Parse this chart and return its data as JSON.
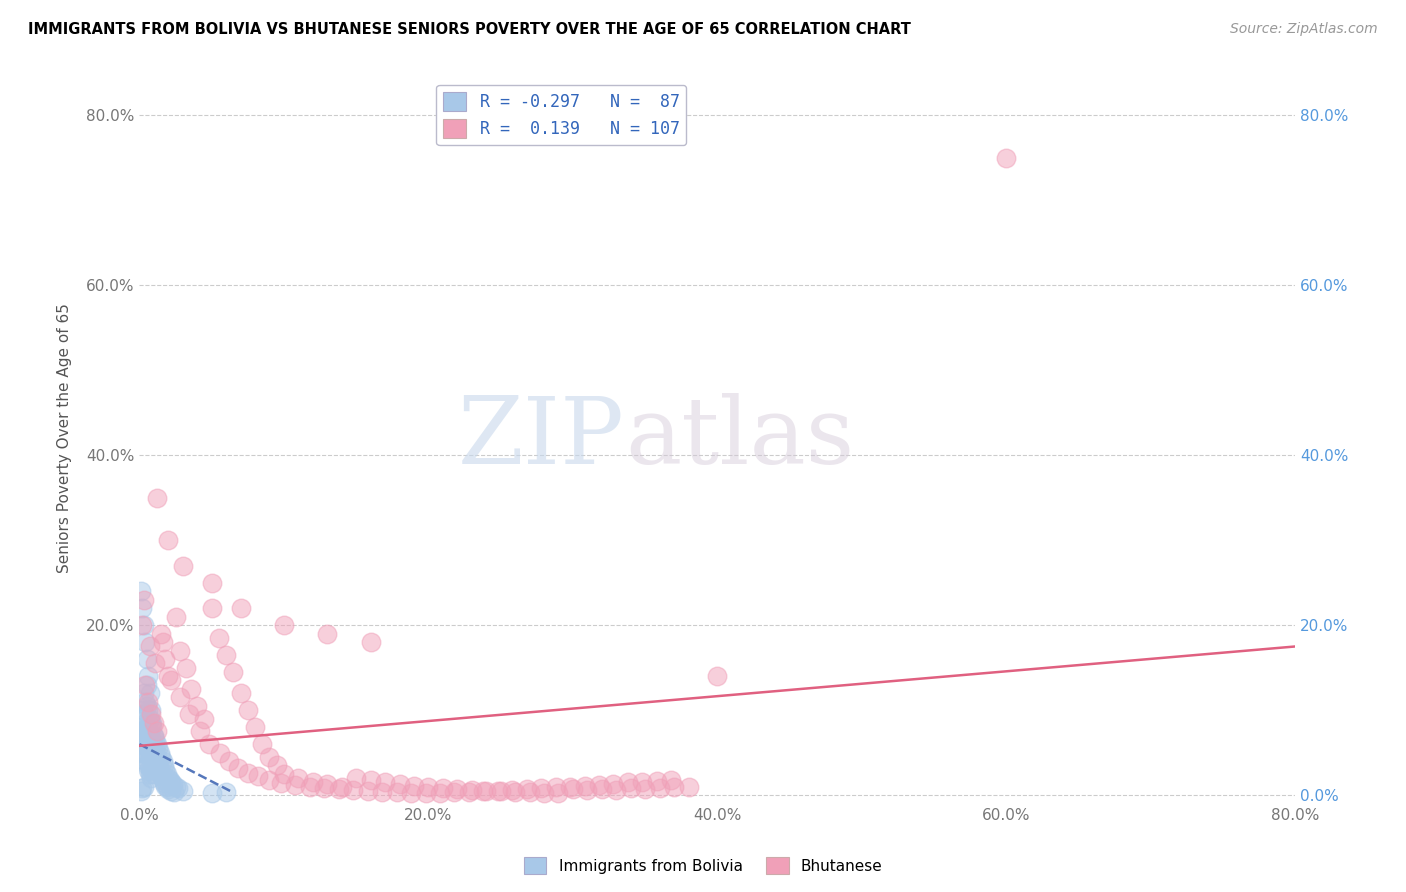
{
  "title": "IMMIGRANTS FROM BOLIVIA VS BHUTANESE SENIORS POVERTY OVER THE AGE OF 65 CORRELATION CHART",
  "source": "Source: ZipAtlas.com",
  "ylabel": "Seniors Poverty Over the Age of 65",
  "xlim": [
    0.0,
    0.8
  ],
  "ylim": [
    -0.01,
    0.85
  ],
  "yticks": [
    0.0,
    0.2,
    0.4,
    0.6,
    0.8
  ],
  "xticks": [
    0.0,
    0.2,
    0.4,
    0.6,
    0.8
  ],
  "xtick_labels": [
    "0.0%",
    "20.0%",
    "40.0%",
    "60.0%",
    "80.0%"
  ],
  "ytick_labels_left": [
    "",
    "20.0%",
    "40.0%",
    "60.0%",
    "80.0%"
  ],
  "ytick_labels_right": [
    "0.0%",
    "20.0%",
    "40.0%",
    "60.0%",
    "80.0%"
  ],
  "bolivia_color": "#a8c8e8",
  "bhutan_color": "#f0a0b8",
  "bolivia_R": -0.297,
  "bolivia_N": 87,
  "bhutan_R": 0.139,
  "bhutan_N": 107,
  "bolivia_line_color": "#5577bb",
  "bhutan_line_color": "#e06080",
  "watermark_zip": "ZIP",
  "watermark_atlas": "atlas",
  "legend_label_bolivia": "Immigrants from Bolivia",
  "legend_label_bhutan": "Bhutanese",
  "bolivia_scatter_x": [
    0.001,
    0.001,
    0.002,
    0.002,
    0.002,
    0.003,
    0.003,
    0.003,
    0.003,
    0.004,
    0.004,
    0.004,
    0.004,
    0.005,
    0.005,
    0.005,
    0.005,
    0.005,
    0.006,
    0.006,
    0.006,
    0.006,
    0.007,
    0.007,
    0.007,
    0.007,
    0.008,
    0.008,
    0.008,
    0.008,
    0.009,
    0.009,
    0.009,
    0.01,
    0.01,
    0.01,
    0.011,
    0.011,
    0.012,
    0.012,
    0.013,
    0.013,
    0.014,
    0.015,
    0.016,
    0.017,
    0.018,
    0.019,
    0.02,
    0.021,
    0.022,
    0.023,
    0.025,
    0.027,
    0.03,
    0.001,
    0.002,
    0.003,
    0.004,
    0.005,
    0.006,
    0.007,
    0.008,
    0.009,
    0.01,
    0.011,
    0.012,
    0.013,
    0.014,
    0.015,
    0.016,
    0.017,
    0.018,
    0.019,
    0.02,
    0.022,
    0.024,
    0.003,
    0.004,
    0.005,
    0.006,
    0.007,
    0.05,
    0.06,
    0.003,
    0.002,
    0.001
  ],
  "bolivia_scatter_y": [
    0.08,
    0.06,
    0.1,
    0.075,
    0.05,
    0.12,
    0.095,
    0.07,
    0.05,
    0.11,
    0.085,
    0.065,
    0.04,
    0.13,
    0.105,
    0.08,
    0.06,
    0.035,
    0.1,
    0.075,
    0.055,
    0.03,
    0.09,
    0.07,
    0.05,
    0.025,
    0.085,
    0.065,
    0.045,
    0.02,
    0.08,
    0.055,
    0.03,
    0.07,
    0.05,
    0.025,
    0.065,
    0.04,
    0.06,
    0.035,
    0.055,
    0.03,
    0.05,
    0.045,
    0.04,
    0.035,
    0.03,
    0.025,
    0.02,
    0.018,
    0.015,
    0.013,
    0.01,
    0.008,
    0.005,
    0.24,
    0.22,
    0.2,
    0.18,
    0.16,
    0.14,
    0.12,
    0.1,
    0.085,
    0.07,
    0.055,
    0.045,
    0.035,
    0.028,
    0.022,
    0.018,
    0.014,
    0.011,
    0.009,
    0.007,
    0.005,
    0.004,
    0.075,
    0.06,
    0.048,
    0.038,
    0.03,
    0.003,
    0.004,
    0.01,
    0.008,
    0.005
  ],
  "bhutan_scatter_x": [
    0.002,
    0.004,
    0.006,
    0.008,
    0.01,
    0.012,
    0.015,
    0.018,
    0.02,
    0.025,
    0.028,
    0.032,
    0.036,
    0.04,
    0.045,
    0.05,
    0.055,
    0.06,
    0.065,
    0.07,
    0.075,
    0.08,
    0.085,
    0.09,
    0.095,
    0.1,
    0.11,
    0.12,
    0.13,
    0.14,
    0.15,
    0.16,
    0.17,
    0.18,
    0.19,
    0.2,
    0.21,
    0.22,
    0.23,
    0.24,
    0.25,
    0.26,
    0.27,
    0.28,
    0.29,
    0.3,
    0.31,
    0.32,
    0.33,
    0.34,
    0.35,
    0.36,
    0.37,
    0.38,
    0.003,
    0.007,
    0.011,
    0.016,
    0.022,
    0.028,
    0.034,
    0.042,
    0.048,
    0.056,
    0.062,
    0.068,
    0.075,
    0.082,
    0.09,
    0.098,
    0.108,
    0.118,
    0.128,
    0.138,
    0.148,
    0.158,
    0.168,
    0.178,
    0.188,
    0.198,
    0.208,
    0.218,
    0.228,
    0.238,
    0.248,
    0.258,
    0.268,
    0.278,
    0.288,
    0.298,
    0.308,
    0.318,
    0.328,
    0.338,
    0.348,
    0.358,
    0.368,
    0.012,
    0.02,
    0.03,
    0.05,
    0.07,
    0.1,
    0.13,
    0.16,
    0.6,
    0.4
  ],
  "bhutan_scatter_y": [
    0.2,
    0.13,
    0.11,
    0.095,
    0.085,
    0.075,
    0.19,
    0.16,
    0.14,
    0.21,
    0.17,
    0.15,
    0.125,
    0.105,
    0.09,
    0.22,
    0.185,
    0.165,
    0.145,
    0.12,
    0.1,
    0.08,
    0.06,
    0.045,
    0.035,
    0.025,
    0.02,
    0.016,
    0.013,
    0.01,
    0.02,
    0.018,
    0.015,
    0.013,
    0.011,
    0.009,
    0.008,
    0.007,
    0.006,
    0.005,
    0.005,
    0.004,
    0.004,
    0.003,
    0.003,
    0.007,
    0.006,
    0.007,
    0.006,
    0.008,
    0.007,
    0.008,
    0.009,
    0.01,
    0.23,
    0.175,
    0.155,
    0.18,
    0.135,
    0.115,
    0.095,
    0.075,
    0.06,
    0.05,
    0.04,
    0.032,
    0.026,
    0.022,
    0.018,
    0.014,
    0.012,
    0.01,
    0.008,
    0.007,
    0.006,
    0.005,
    0.004,
    0.004,
    0.003,
    0.003,
    0.003,
    0.004,
    0.004,
    0.005,
    0.005,
    0.006,
    0.007,
    0.008,
    0.009,
    0.01,
    0.011,
    0.012,
    0.013,
    0.015,
    0.016,
    0.017,
    0.018,
    0.35,
    0.3,
    0.27,
    0.25,
    0.22,
    0.2,
    0.19,
    0.18,
    0.75,
    0.14
  ],
  "bolivia_trend_x": [
    0.0,
    0.065
  ],
  "bolivia_trend_y": [
    0.06,
    0.003
  ],
  "bhutan_trend_x": [
    0.0,
    0.8
  ],
  "bhutan_trend_y": [
    0.058,
    0.175
  ]
}
